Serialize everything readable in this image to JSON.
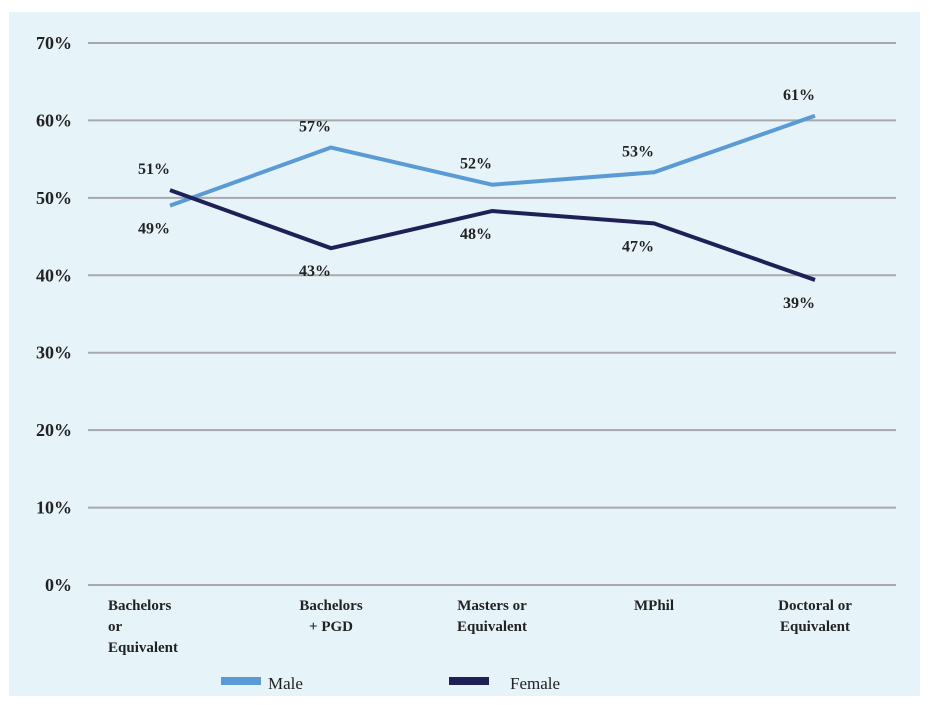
{
  "chart_data": {
    "type": "line",
    "title": "",
    "xlabel": "",
    "ylabel": "",
    "categories": [
      [
        "Bachelors",
        "or",
        "Equivalent"
      ],
      [
        "Bachelors",
        "+ PGD"
      ],
      [
        "Masters or",
        "Equivalent"
      ],
      [
        "MPhil"
      ],
      [
        "Doctoral or",
        "Equivalent"
      ]
    ],
    "y_ticks": [
      "0%",
      "10%",
      "20%",
      "30%",
      "40%",
      "50%",
      "60%",
      "70%"
    ],
    "ylim": [
      0,
      70
    ],
    "grid": true,
    "legend_position": "bottom",
    "series": [
      {
        "name": "Male",
        "color": "#5b9bd5",
        "values": [
          49,
          56.5,
          51.7,
          53.3,
          60.6
        ],
        "labels": [
          "49%",
          "57%",
          "52%",
          "53%",
          "61%"
        ],
        "label_side": [
          "below",
          "above",
          "above",
          "above",
          "above"
        ]
      },
      {
        "name": "Female",
        "color": "#1f2156",
        "values": [
          51,
          43.5,
          48.3,
          46.7,
          39.4
        ],
        "labels": [
          "51%",
          "43%",
          "48%",
          "47%",
          "39%"
        ],
        "label_side": [
          "above",
          "below",
          "below",
          "below",
          "below"
        ]
      }
    ]
  }
}
